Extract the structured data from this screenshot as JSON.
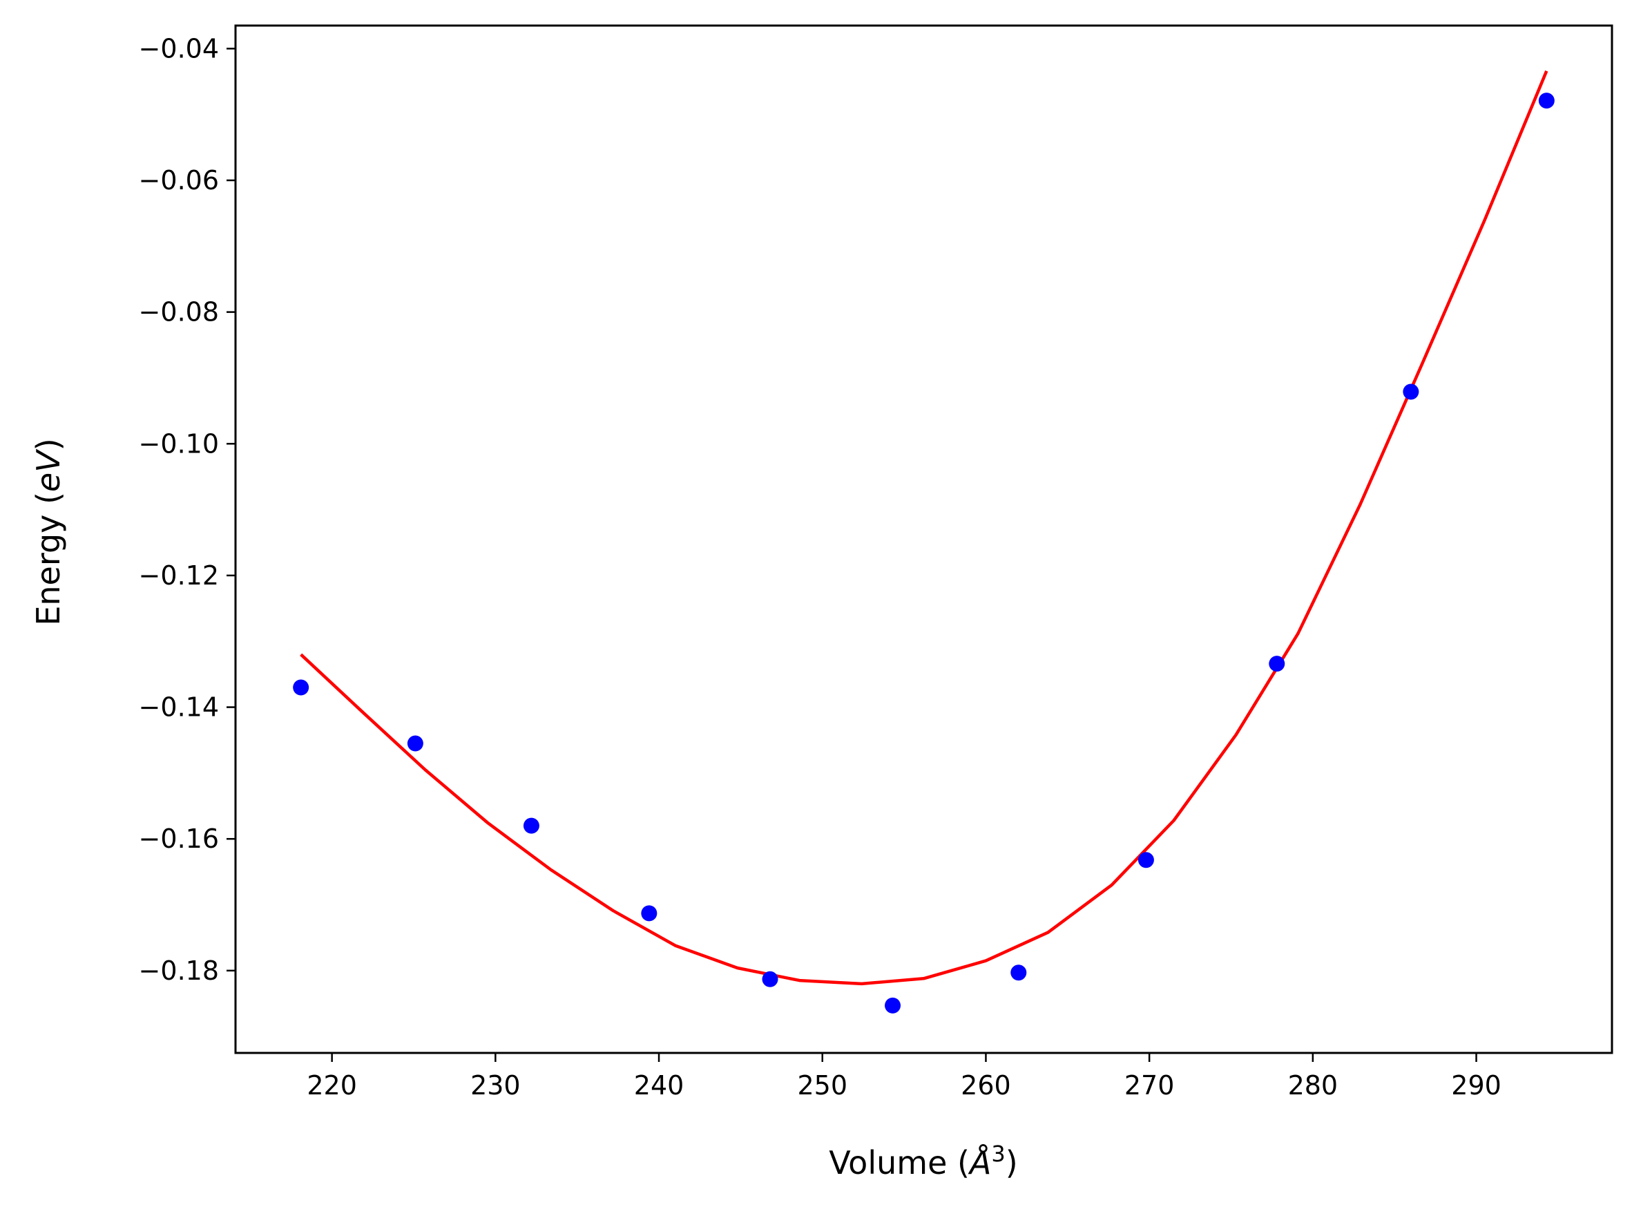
{
  "chart_data": {
    "type": "scatter",
    "xlabel": {
      "prefix": "Volume (",
      "unit": "Å",
      "exp": "3",
      "suffix": ")"
    },
    "ylabel": {
      "prefix": "Energy (",
      "unit": "eV",
      "suffix": ")"
    },
    "xlim": [
      214.1,
      298.3
    ],
    "ylim": [
      -0.1925,
      -0.0365
    ],
    "xticks": [
      220,
      230,
      240,
      250,
      260,
      270,
      280,
      290
    ],
    "yticks": [
      -0.04,
      -0.06,
      -0.08,
      -0.1,
      -0.12,
      -0.14,
      -0.16,
      -0.18
    ],
    "ytick_labels": [
      "−0.04",
      "−0.06",
      "−0.08",
      "−0.10",
      "−0.12",
      "−0.14",
      "−0.16",
      "−0.18"
    ],
    "grid": false,
    "legend": "none",
    "series": [
      {
        "type": "scatter",
        "color": "#0000ff",
        "x": [
          218.1,
          225.1,
          232.2,
          239.4,
          246.8,
          254.3,
          262.0,
          269.8,
          277.8,
          286.0,
          294.3
        ],
        "y": [
          -0.137,
          -0.1455,
          -0.158,
          -0.1713,
          -0.1813,
          -0.1853,
          -0.1803,
          -0.1632,
          -0.1334,
          -0.0921,
          -0.0479
        ]
      },
      {
        "type": "line",
        "color": "#ff0000",
        "x": [
          218.1,
          221.9,
          225.7,
          229.5,
          233.4,
          237.2,
          241.0,
          244.8,
          248.6,
          252.4,
          256.2,
          260.0,
          263.8,
          267.7,
          271.5,
          275.3,
          279.1,
          282.9,
          286.7,
          290.5,
          294.3
        ],
        "y": [
          -0.132,
          -0.1408,
          -0.1495,
          -0.1575,
          -0.1647,
          -0.1709,
          -0.1762,
          -0.1796,
          -0.1815,
          -0.182,
          -0.1812,
          -0.1785,
          -0.1742,
          -0.167,
          -0.1572,
          -0.1442,
          -0.1288,
          -0.1092,
          -0.0878,
          -0.0661,
          -0.0434
        ]
      }
    ]
  }
}
